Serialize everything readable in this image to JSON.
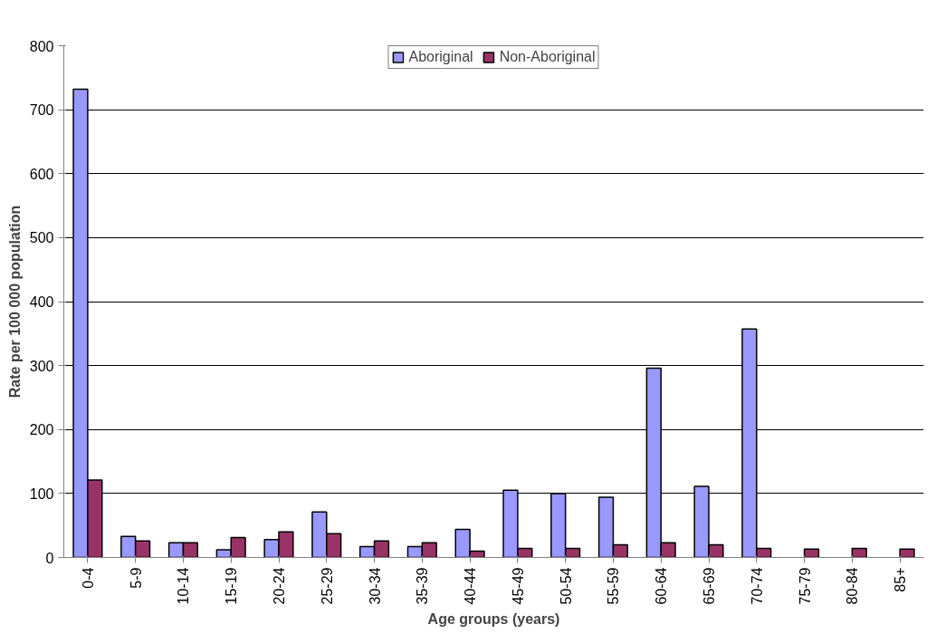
{
  "chart_data": {
    "type": "bar",
    "xlabel": "Age groups (years)",
    "ylabel": "Rate per 100 000 population",
    "categories": [
      "0-4",
      "5-9",
      "10-14",
      "15-19",
      "20-24",
      "25-29",
      "30-34",
      "35-39",
      "40-44",
      "45-49",
      "50-54",
      "55-59",
      "60-64",
      "65-69",
      "70-74",
      "75-79",
      "80-84",
      "85+"
    ],
    "series": [
      {
        "name": "Aboriginal",
        "color": "#9999ff",
        "values": [
          732,
          33,
          23,
          12,
          28,
          71,
          17,
          17,
          44,
          105,
          100,
          94,
          296,
          111,
          357,
          null,
          null,
          null
        ]
      },
      {
        "name": "Non-Aboriginal",
        "color": "#993366",
        "values": [
          121,
          26,
          23,
          31,
          40,
          37,
          26,
          23,
          10,
          14,
          14,
          20,
          23,
          20,
          14,
          13,
          14,
          13
        ]
      }
    ],
    "ylim": [
      0,
      800
    ],
    "yticks": [
      0,
      100,
      200,
      300,
      400,
      500,
      600,
      700,
      800
    ],
    "grid": "y",
    "legend": "top"
  }
}
